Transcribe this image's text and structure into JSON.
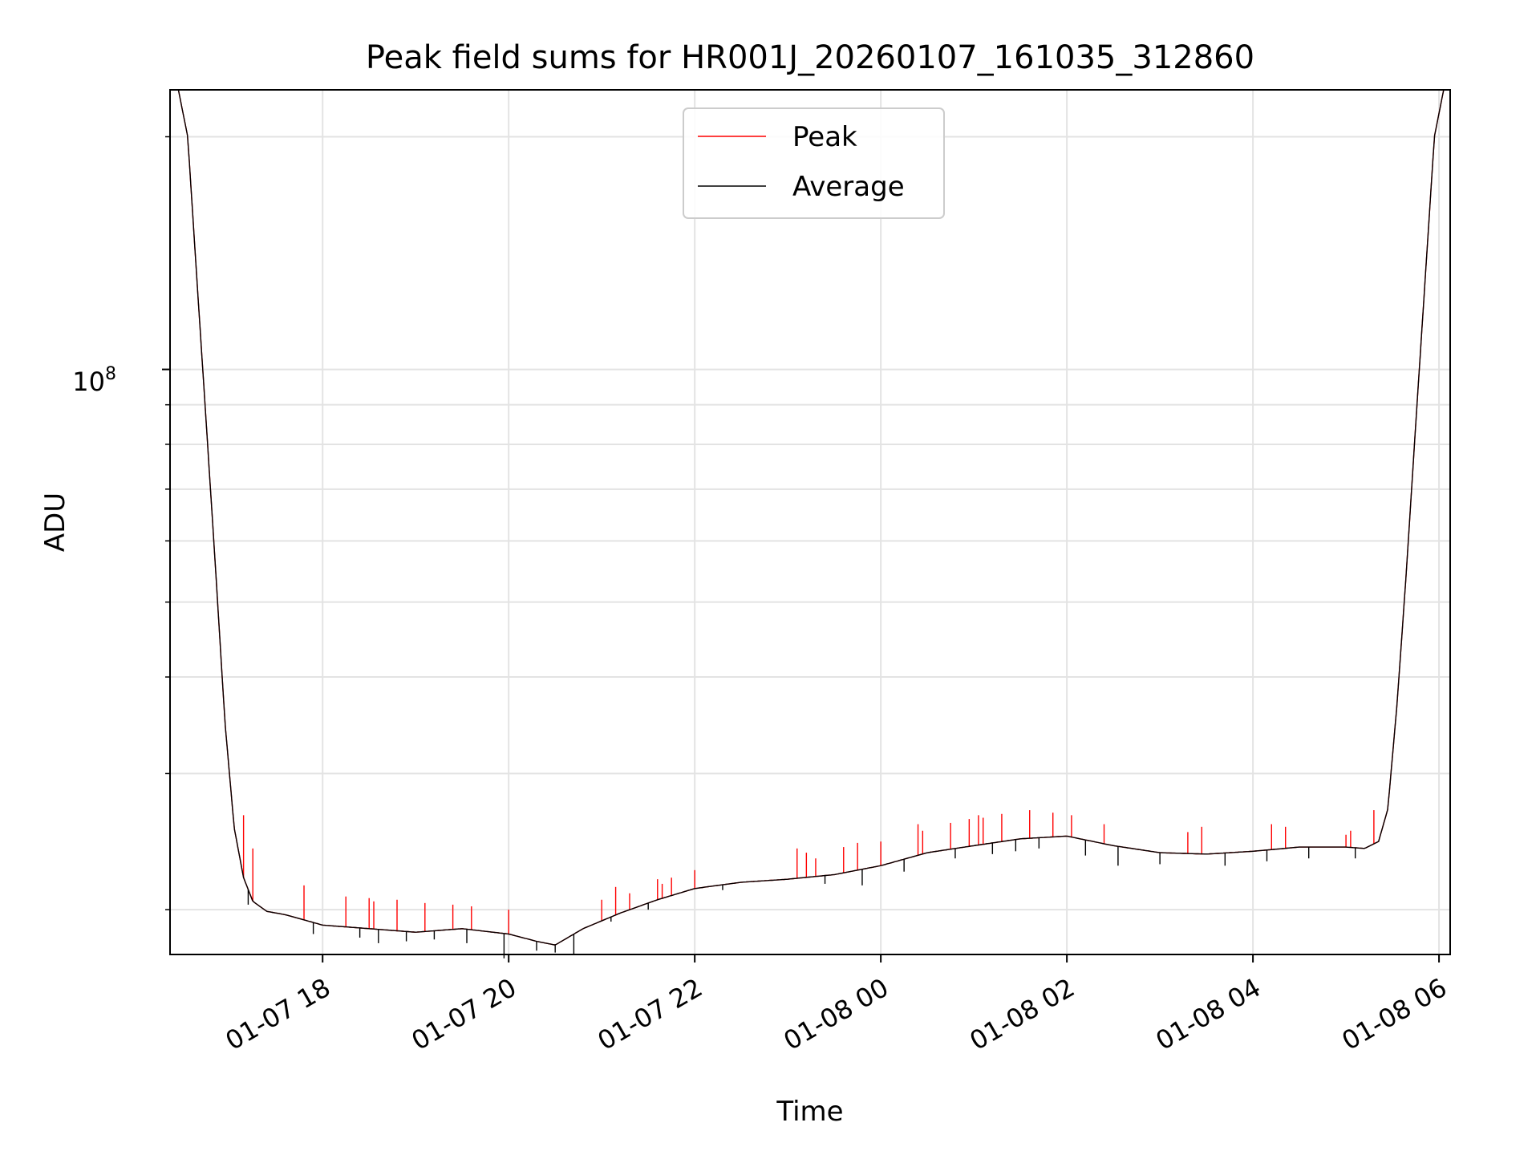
{
  "chart_data": {
    "type": "line",
    "title": "Peak field sums for HR001J_20260107_161035_312860",
    "xlabel": "Time",
    "ylabel": "ADU",
    "yscale": "log",
    "ylim": [
      17500000,
      230000000
    ],
    "xlim": [
      16.36,
      30.12
    ],
    "grid": true,
    "legend_loc": "upper center",
    "x_tick_values": [
      18,
      20,
      22,
      24,
      26,
      28,
      30
    ],
    "x_tick_labels": [
      "01-07 18",
      "01-07 20",
      "01-07 22",
      "01-08 00",
      "01-08 02",
      "01-08 04",
      "01-08 06"
    ],
    "y_major_tick": {
      "value": 100000000,
      "base": "10",
      "exponent": "8"
    },
    "y_minor_ticks": [
      20000000,
      30000000,
      40000000,
      50000000,
      60000000,
      70000000,
      80000000,
      90000000,
      200000000
    ],
    "series": [
      {
        "name": "Peak",
        "color": "#ff0000",
        "line_width": 0.8
      },
      {
        "name": "Average",
        "color": "#000000",
        "line_width": 0.8
      }
    ],
    "trend_points": [
      [
        16.45,
        230000000
      ],
      [
        16.55,
        200000000
      ],
      [
        16.65,
        130000000
      ],
      [
        16.75,
        85000000
      ],
      [
        16.85,
        55000000
      ],
      [
        16.95,
        35000000
      ],
      [
        17.05,
        25500000
      ],
      [
        17.15,
        22000000
      ],
      [
        17.25,
        20500000
      ],
      [
        17.4,
        19900000
      ],
      [
        17.6,
        19700000
      ],
      [
        17.8,
        19400000
      ],
      [
        18.0,
        19100000
      ],
      [
        18.5,
        18900000
      ],
      [
        19.0,
        18700000
      ],
      [
        19.5,
        18900000
      ],
      [
        20.0,
        18600000
      ],
      [
        20.3,
        18200000
      ],
      [
        20.5,
        18000000
      ],
      [
        20.8,
        18900000
      ],
      [
        21.2,
        19800000
      ],
      [
        21.6,
        20600000
      ],
      [
        22.0,
        21300000
      ],
      [
        22.5,
        21700000
      ],
      [
        23.0,
        21900000
      ],
      [
        23.5,
        22200000
      ],
      [
        24.0,
        22800000
      ],
      [
        24.5,
        23700000
      ],
      [
        25.0,
        24200000
      ],
      [
        25.5,
        24700000
      ],
      [
        26.0,
        24900000
      ],
      [
        26.5,
        24200000
      ],
      [
        27.0,
        23700000
      ],
      [
        27.5,
        23600000
      ],
      [
        28.0,
        23800000
      ],
      [
        28.5,
        24100000
      ],
      [
        29.0,
        24100000
      ],
      [
        29.2,
        24000000
      ],
      [
        29.35,
        24500000
      ],
      [
        29.45,
        27000000
      ],
      [
        29.55,
        37000000
      ],
      [
        29.65,
        55000000
      ],
      [
        29.75,
        85000000
      ],
      [
        29.85,
        130000000
      ],
      [
        29.95,
        200000000
      ],
      [
        30.05,
        230000000
      ]
    ],
    "peak_spikes": [
      [
        17.15,
        26500000
      ],
      [
        17.25,
        24000000
      ],
      [
        17.8,
        21500000
      ],
      [
        18.25,
        20800000
      ],
      [
        18.5,
        20700000
      ],
      [
        18.55,
        20500000
      ],
      [
        18.8,
        20600000
      ],
      [
        19.1,
        20400000
      ],
      [
        19.4,
        20300000
      ],
      [
        19.6,
        20200000
      ],
      [
        20.0,
        20000000
      ],
      [
        21.0,
        20600000
      ],
      [
        21.15,
        21400000
      ],
      [
        21.3,
        21000000
      ],
      [
        21.6,
        21900000
      ],
      [
        21.65,
        21600000
      ],
      [
        21.75,
        22000000
      ],
      [
        22.0,
        22500000
      ],
      [
        23.1,
        24000000
      ],
      [
        23.2,
        23700000
      ],
      [
        23.3,
        23300000
      ],
      [
        23.6,
        24100000
      ],
      [
        23.75,
        24400000
      ],
      [
        24.0,
        24500000
      ],
      [
        24.4,
        25800000
      ],
      [
        24.45,
        25300000
      ],
      [
        24.75,
        25900000
      ],
      [
        24.95,
        26200000
      ],
      [
        25.05,
        26500000
      ],
      [
        25.1,
        26300000
      ],
      [
        25.3,
        26600000
      ],
      [
        25.6,
        26900000
      ],
      [
        25.85,
        26700000
      ],
      [
        26.05,
        26500000
      ],
      [
        26.4,
        25800000
      ],
      [
        27.3,
        25200000
      ],
      [
        27.45,
        25600000
      ],
      [
        28.2,
        25800000
      ],
      [
        28.35,
        25600000
      ],
      [
        29.0,
        25000000
      ],
      [
        29.05,
        25300000
      ],
      [
        29.3,
        26900000
      ]
    ],
    "avg_dips": [
      [
        17.2,
        20300000
      ],
      [
        17.9,
        18600000
      ],
      [
        18.4,
        18400000
      ],
      [
        18.6,
        18100000
      ],
      [
        18.9,
        18200000
      ],
      [
        19.2,
        18300000
      ],
      [
        19.55,
        18100000
      ],
      [
        19.95,
        17300000
      ],
      [
        20.3,
        17700000
      ],
      [
        20.5,
        17600000
      ],
      [
        20.7,
        17500000
      ],
      [
        21.1,
        19300000
      ],
      [
        21.5,
        20000000
      ],
      [
        22.3,
        21200000
      ],
      [
        23.4,
        21600000
      ],
      [
        23.8,
        21500000
      ],
      [
        24.25,
        22400000
      ],
      [
        24.8,
        23300000
      ],
      [
        25.2,
        23600000
      ],
      [
        25.45,
        23800000
      ],
      [
        25.7,
        24000000
      ],
      [
        26.2,
        23500000
      ],
      [
        26.55,
        22800000
      ],
      [
        27.0,
        22900000
      ],
      [
        27.7,
        22800000
      ],
      [
        28.15,
        23100000
      ],
      [
        28.6,
        23300000
      ],
      [
        29.1,
        23300000
      ]
    ]
  }
}
